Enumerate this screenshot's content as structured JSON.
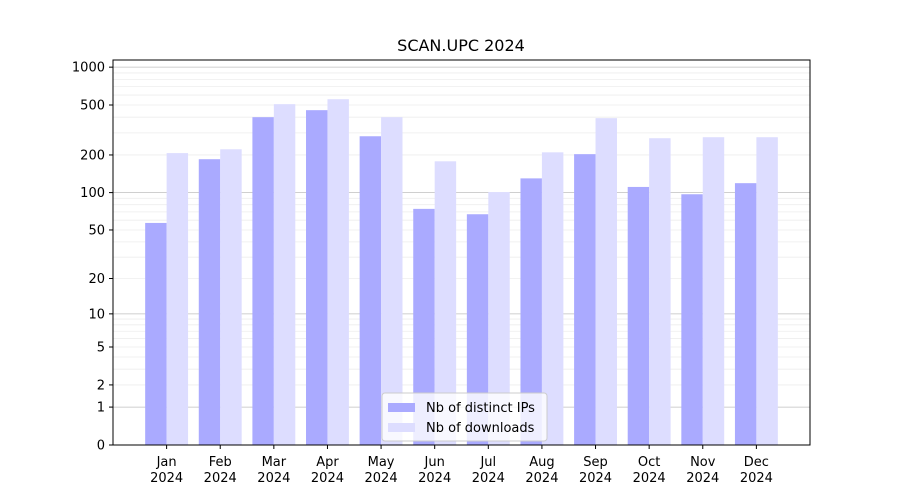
{
  "chart_data": {
    "type": "bar",
    "title": "SCAN.UPC 2024",
    "categories": [
      "Jan 2024",
      "Feb 2024",
      "Mar 2024",
      "Apr 2024",
      "May 2024",
      "Jun 2024",
      "Jul 2024",
      "Aug 2024",
      "Sep 2024",
      "Oct 2024",
      "Nov 2024",
      "Dec 2024"
    ],
    "series": [
      {
        "name": "Nb of distinct IPs",
        "color": "#aaaaff",
        "values": [
          57,
          185,
          400,
          455,
          282,
          74,
          67,
          130,
          203,
          111,
          97,
          119
        ]
      },
      {
        "name": "Nb of downloads",
        "color": "#ddddff",
        "values": [
          207,
          222,
          508,
          556,
          400,
          178,
          101,
          210,
          393,
          272,
          277,
          277
        ]
      }
    ],
    "yscale": "log1p",
    "ylim": [
      0,
      1140
    ],
    "yticks": [
      0,
      1,
      2,
      5,
      10,
      20,
      50,
      100,
      200,
      500,
      1000
    ],
    "grid_major": [
      1,
      10,
      100,
      1000
    ],
    "grid_minor": [
      2,
      3,
      4,
      5,
      6,
      7,
      8,
      9,
      20,
      30,
      40,
      50,
      60,
      70,
      80,
      90,
      200,
      300,
      400,
      500,
      600,
      700,
      800,
      900
    ],
    "legend": "lower center"
  }
}
